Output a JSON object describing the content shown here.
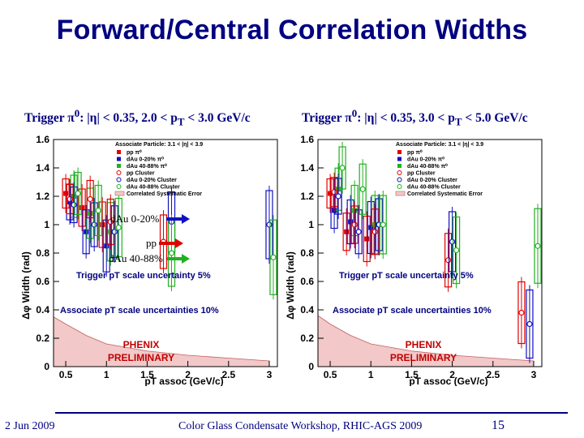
{
  "slide": {
    "title": "Forward/Central Correlation Widths",
    "footer_date": "2 Jun 2009",
    "footer_center": "Color Glass Condensate Workshop, RHIC-AGS 2009",
    "page_number": "15"
  },
  "left_panel": {
    "trigger_prefix": "Trigger π",
    "trigger_sup": "0",
    "trigger_rest": ": |η| < 0.35, 2.0 < p",
    "trigger_sub": "T",
    "trigger_end": " < 3.0 GeV/c",
    "annotations": {
      "dau_central": "dAu 0-20%",
      "pp": "pp",
      "dau_peripheral": "dAu 40-88%"
    }
  },
  "right_panel": {
    "trigger_prefix": "Trigger π",
    "trigger_sup": "0",
    "trigger_rest": ": |η| < 0.35, 3.0 < p",
    "trigger_sub": "T",
    "trigger_end": " < 5.0 GeV/c"
  },
  "chart_data": [
    {
      "type": "scatter",
      "title": "",
      "xlabel": "pT assoc (GeV/c)",
      "ylabel": "Δφ Width (rad)",
      "xlim": [
        0.35,
        3.1
      ],
      "ylim": [
        0,
        1.6
      ],
      "xticks": [
        "0.5",
        "1",
        "1.5",
        "2",
        "2.5",
        "3"
      ],
      "yticks": [
        "0",
        "0.2",
        "0.4",
        "0.6",
        "0.8",
        "1",
        "1.2",
        "1.4",
        "1.6"
      ],
      "legend": {
        "title": "Associate Particle: 3.1 < |η| < 3.9",
        "position": "top-right",
        "entries": [
          "pp π⁰",
          "dAu 0-20% π⁰",
          "dAu 40-88% π⁰",
          "pp Cluster",
          "dAu 0-20% Cluster",
          "dAu 40-88% Cluster",
          "Correlated Systematic Error"
        ]
      },
      "annotations": [
        "Trigger pT scale uncertainty 5%",
        "Associate pT scale uncertainties 10%",
        "PHENIX",
        "PRELIMINARY"
      ],
      "series": [
        {
          "name": "pp π⁰",
          "color": "#e00000",
          "x": [
            0.55,
            0.75,
            1.0
          ],
          "y": [
            1.22,
            1.12,
            1.0
          ]
        },
        {
          "name": "dAu 0-20% π⁰",
          "color": "#1010c0",
          "x": [
            0.55,
            0.75,
            1.0
          ],
          "y": [
            1.16,
            0.95,
            0.85
          ]
        },
        {
          "name": "dAu 40-88% π⁰",
          "color": "#20b020",
          "x": [
            0.55,
            0.75,
            1.0
          ],
          "y": [
            1.2,
            1.08,
            0.95
          ]
        },
        {
          "name": "pp Cluster",
          "color": "#e00000",
          "x": [
            0.6,
            0.85,
            1.1,
            1.75
          ],
          "y": [
            1.18,
            1.18,
            1.02,
            0.88
          ]
        },
        {
          "name": "dAu 0-20% Cluster",
          "color": "#1010c0",
          "x": [
            0.6,
            0.85,
            1.1,
            1.8,
            3.0
          ],
          "y": [
            1.14,
            1.0,
            0.95,
            1.02,
            1.0
          ]
        },
        {
          "name": "dAu 40-88% Cluster",
          "color": "#20b020",
          "x": [
            0.6,
            0.85,
            1.1,
            1.75,
            3.0
          ],
          "y": [
            1.22,
            1.1,
            0.98,
            0.8,
            0.77
          ]
        }
      ],
      "systematic_band": {
        "x": [
          0.35,
          0.5,
          0.75,
          1.0,
          1.5,
          2.0,
          2.5,
          3.0
        ],
        "y": [
          0.35,
          0.3,
          0.22,
          0.16,
          0.11,
          0.08,
          0.06,
          0.04
        ]
      }
    },
    {
      "type": "scatter",
      "title": "",
      "xlabel": "pT assoc (GeV/c)",
      "ylabel": "Δφ Width (rad)",
      "xlim": [
        0.35,
        3.1
      ],
      "ylim": [
        0,
        1.6
      ],
      "xticks": [
        "0.5",
        "1",
        "1.5",
        "2",
        "2.5",
        "3"
      ],
      "yticks": [
        "0",
        "0.2",
        "0.4",
        "0.6",
        "0.8",
        "1",
        "1.2",
        "1.4",
        "1.6"
      ],
      "legend": {
        "title": "Associate Particle: 3.1 < |η| < 3.9",
        "position": "top-right",
        "entries": [
          "pp π⁰",
          "dAu 0-20% π⁰",
          "dAu 40-88% π⁰",
          "pp Cluster",
          "dAu 0-20% Cluster",
          "dAu 40-88% Cluster",
          "Correlated Systematic Error"
        ]
      },
      "annotations": [
        "Trigger pT scale uncertainty 5%",
        "Associate pT scale uncertainties 10%",
        "PHENIX",
        "PRELIMINARY"
      ],
      "series": [
        {
          "name": "pp π⁰",
          "color": "#e00000",
          "x": [
            0.55,
            0.75,
            1.0
          ],
          "y": [
            1.22,
            0.95,
            0.9
          ]
        },
        {
          "name": "dAu 0-20% π⁰",
          "color": "#1010c0",
          "x": [
            0.55,
            0.75,
            1.0
          ],
          "y": [
            1.1,
            1.02,
            0.98
          ]
        },
        {
          "name": "dAu 40-88% π⁰",
          "color": "#20b020",
          "x": [
            0.55,
            0.75,
            1.0
          ],
          "y": [
            1.25,
            1.1,
            1.0
          ]
        },
        {
          "name": "pp Cluster",
          "color": "#e00000",
          "x": [
            0.6,
            0.85,
            1.1,
            2.0,
            2.9
          ],
          "y": [
            1.23,
            1.0,
            0.95,
            0.75,
            0.38
          ]
        },
        {
          "name": "dAu 0-20% Cluster",
          "color": "#1010c0",
          "x": [
            0.6,
            0.85,
            1.1,
            2.0,
            2.95
          ],
          "y": [
            1.2,
            0.95,
            1.0,
            0.88,
            0.3
          ]
        },
        {
          "name": "dAu 40-88% Cluster",
          "color": "#20b020",
          "x": [
            0.6,
            0.85,
            1.1,
            2.0,
            3.0
          ],
          "y": [
            1.4,
            1.25,
            1.0,
            0.82,
            0.85
          ]
        }
      ],
      "systematic_band": {
        "x": [
          0.35,
          0.5,
          0.75,
          1.0,
          1.5,
          2.0,
          2.5,
          3.0
        ],
        "y": [
          0.36,
          0.3,
          0.22,
          0.16,
          0.11,
          0.08,
          0.06,
          0.04
        ]
      }
    }
  ]
}
